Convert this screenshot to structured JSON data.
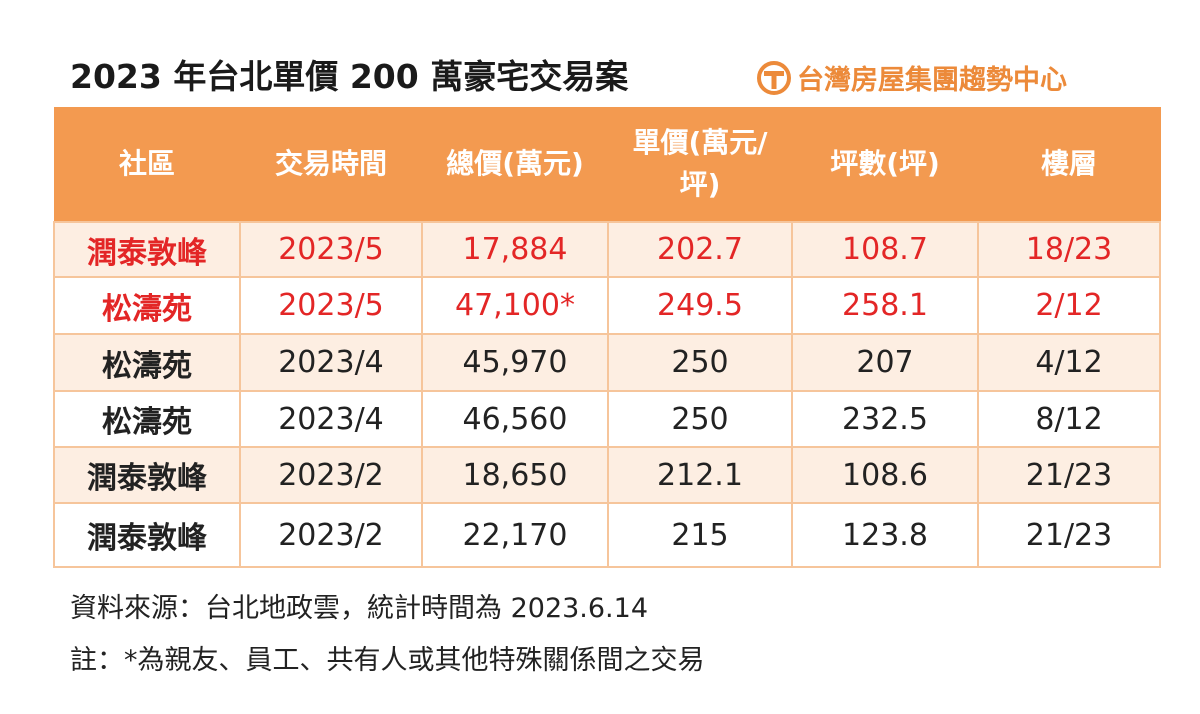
{
  "title": "2023 年台北單價 200 萬豪宅交易案",
  "brand": {
    "name": "台灣房屋集團趨勢中心",
    "color": "#ec8a3a",
    "logo_icon": "taiwan-realty-logo-icon"
  },
  "table": {
    "header_color": "#f39a50",
    "headers": [
      "社區",
      "交易時間",
      "總價(萬元)",
      "單價(萬元/\n坪)",
      "坪數(坪)",
      "樓層"
    ],
    "rows": [
      {
        "cells": [
          "潤泰敦峰",
          "2023/5",
          "17,884",
          "202.7",
          "108.7",
          "18/23"
        ],
        "highlight": true
      },
      {
        "cells": [
          "松濤苑",
          "2023/5",
          "47,100*",
          "249.5",
          "258.1",
          "2/12"
        ],
        "highlight": true
      },
      {
        "cells": [
          "松濤苑",
          "2023/4",
          "45,970",
          "250",
          "207",
          "4/12"
        ],
        "highlight": false
      },
      {
        "cells": [
          "松濤苑",
          "2023/4",
          "46,560",
          "250",
          "232.5",
          "8/12"
        ],
        "highlight": false
      },
      {
        "cells": [
          "潤泰敦峰",
          "2023/2",
          "18,650",
          "212.1",
          "108.6",
          "21/23"
        ],
        "highlight": false
      },
      {
        "cells": [
          "潤泰敦峰",
          "2023/2",
          "22,170",
          "215",
          "123.8",
          "21/23"
        ],
        "highlight": false
      }
    ]
  },
  "notes": {
    "source": "資料來源：台北地政雲，統計時間為 2023.6.14",
    "remark": "註：*為親友、員工、共有人或其他特殊關係間之交易"
  }
}
